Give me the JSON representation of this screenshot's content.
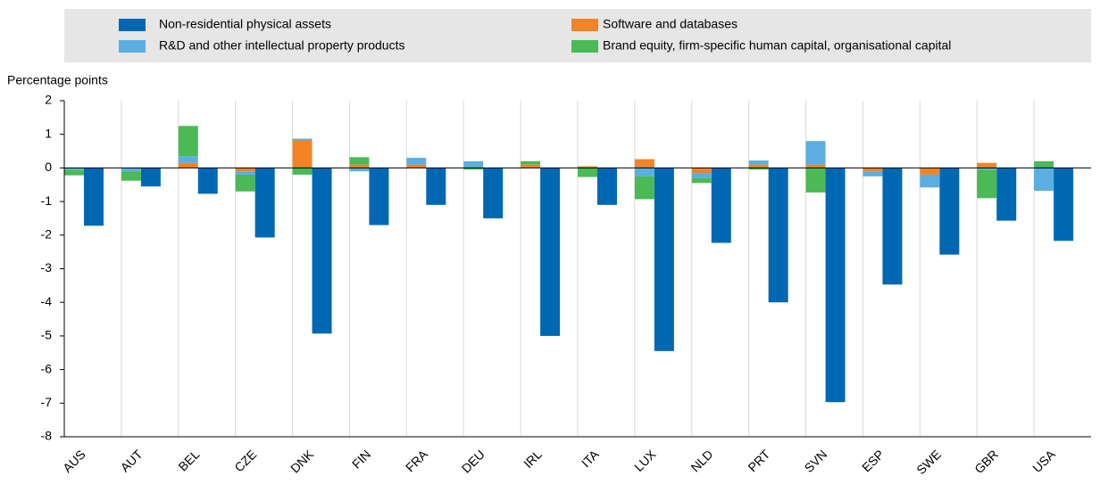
{
  "chart_data": {
    "type": "stacked_grouped_bar",
    "ylabel": "Percentage points",
    "categories": [
      "AUS",
      "AUT",
      "BEL",
      "CZE",
      "DNK",
      "FIN",
      "FRA",
      "DEU",
      "IRL",
      "ITA",
      "LUX",
      "NLD",
      "PRT",
      "SVN",
      "ESP",
      "SWE",
      "GBR",
      "USA"
    ],
    "series": [
      {
        "name": "Non-residential physical assets",
        "color": "#0068b3",
        "stack": 1,
        "values": [
          -1.72,
          -0.55,
          -0.77,
          -2.07,
          -4.93,
          -1.7,
          -1.1,
          -1.5,
          -5.0,
          -1.1,
          -5.45,
          -2.23,
          -4.0,
          -6.97,
          -3.47,
          -2.58,
          -1.57,
          -2.17
        ]
      },
      {
        "name": "Software and databases",
        "color": "#f28425",
        "stack": 0,
        "values": [
          0,
          0,
          0.15,
          -0.1,
          0.82,
          0.1,
          0.1,
          0,
          0.1,
          0.05,
          0.26,
          -0.15,
          0.1,
          0.1,
          -0.1,
          -0.2,
          0.15,
          0
        ]
      },
      {
        "name": "R&D and other intellectual property products",
        "color": "#5aaee0",
        "stack": 0,
        "values": [
          -0.05,
          -0.1,
          0.2,
          -0.1,
          0.05,
          -0.1,
          0.2,
          0.2,
          0,
          0,
          -0.25,
          -0.15,
          0.12,
          0.7,
          -0.15,
          -0.38,
          -0.05,
          -0.68
        ]
      },
      {
        "name": "Brand equity, firm-specific human capital, organisational capital",
        "color": "#4bb956",
        "stack": 0,
        "values": [
          -0.17,
          -0.28,
          0.9,
          -0.5,
          -0.2,
          0.22,
          0,
          -0.05,
          0.1,
          -0.27,
          -0.68,
          -0.15,
          -0.05,
          -0.73,
          0,
          0,
          -0.85,
          0.2
        ]
      }
    ],
    "ylim": [
      -8,
      2
    ],
    "yticks": [
      -8,
      -7,
      -6,
      -5,
      -4,
      -3,
      -2,
      -1,
      0,
      1,
      2
    ],
    "grid": "x"
  }
}
